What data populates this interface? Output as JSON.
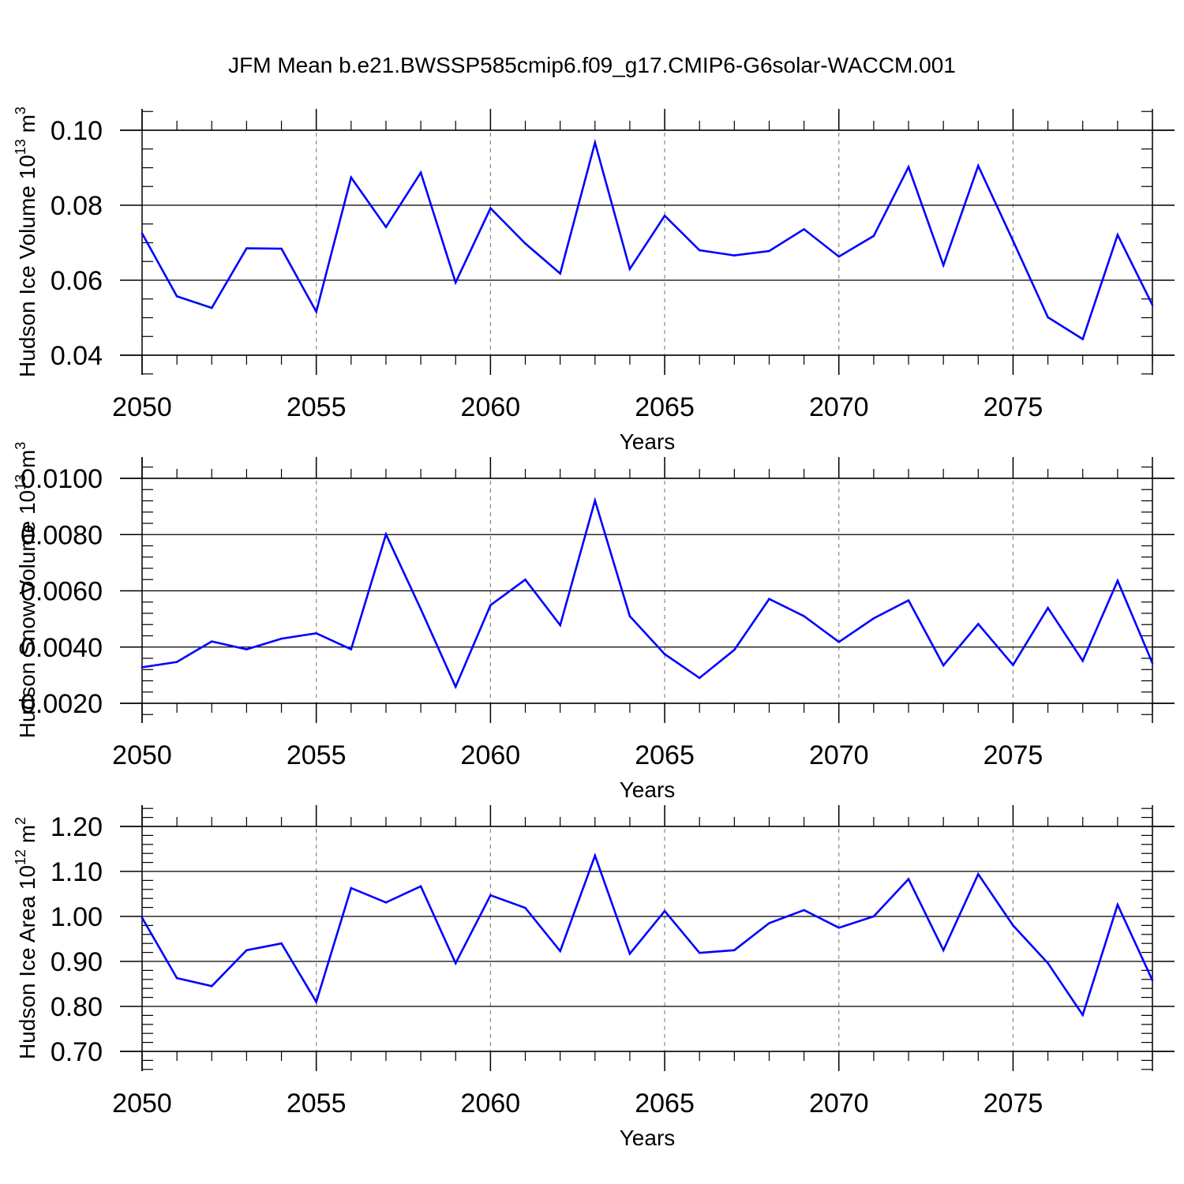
{
  "title": "JFM Mean b.e21.BWSSP585cmip6.f09_g17.CMIP6-G6solar-WACCM.001",
  "colors": {
    "line": "#0000ff",
    "axis": "#000000",
    "grid": "#888888"
  },
  "chart_data": [
    {
      "type": "line",
      "title": "JFM Mean b.e21.BWSSP585cmip6.f09_g17.CMIP6-G6solar-WACCM.001",
      "xlabel": "Years",
      "ylabel": "Hudson Ice Volume 10",
      "ylabel_sup": "13",
      "ylabel_unit": " m",
      "ylabel_unit_sup": "3",
      "xlim": [
        2050,
        2079
      ],
      "ylim": [
        0.035,
        0.105
      ],
      "xticks": [
        2050,
        2055,
        2060,
        2065,
        2070,
        2075
      ],
      "xtick_labels": [
        "2050",
        "2055",
        "2060",
        "2065",
        "2070",
        "2075"
      ],
      "yticks": [
        0.04,
        0.06,
        0.08,
        0.1
      ],
      "ytick_labels": [
        "0.04",
        "0.06",
        "0.08",
        "0.10"
      ],
      "yminor_step": 0.005,
      "x": [
        2050,
        2051,
        2052,
        2053,
        2054,
        2055,
        2056,
        2057,
        2058,
        2059,
        2060,
        2061,
        2062,
        2063,
        2064,
        2065,
        2066,
        2067,
        2068,
        2069,
        2070,
        2071,
        2072,
        2073,
        2074,
        2075,
        2076,
        2077,
        2078,
        2079
      ],
      "series": [
        {
          "name": "Hudson Ice Volume",
          "values": [
            0.0725,
            0.0557,
            0.0526,
            0.0685,
            0.0684,
            0.0516,
            0.0874,
            0.0742,
            0.0887,
            0.0594,
            0.0792,
            0.0698,
            0.0618,
            0.0967,
            0.063,
            0.0772,
            0.068,
            0.0666,
            0.0678,
            0.0736,
            0.0663,
            0.0718,
            0.0902,
            0.064,
            0.0905,
            0.0705,
            0.0501,
            0.0443,
            0.0721,
            0.0534
          ]
        }
      ]
    },
    {
      "type": "line",
      "xlabel": "Years",
      "ylabel": "Hudson Snow Volume 10",
      "ylabel_sup": "13",
      "ylabel_unit": " m",
      "ylabel_unit_sup": "3",
      "xlim": [
        2050,
        2079
      ],
      "ylim": [
        0.0012,
        0.0108
      ],
      "xticks": [
        2050,
        2055,
        2060,
        2065,
        2070,
        2075
      ],
      "xtick_labels": [
        "2050",
        "2055",
        "2060",
        "2065",
        "2070",
        "2075"
      ],
      "yticks": [
        0.002,
        0.004,
        0.006,
        0.008,
        0.01
      ],
      "ytick_labels": [
        "0.0020",
        "0.0040",
        "0.0060",
        "0.0080",
        "0.0100"
      ],
      "yminor_step": 0.0004,
      "x": [
        2050,
        2051,
        2052,
        2053,
        2054,
        2055,
        2056,
        2057,
        2058,
        2059,
        2060,
        2061,
        2062,
        2063,
        2064,
        2065,
        2066,
        2067,
        2068,
        2069,
        2070,
        2071,
        2072,
        2073,
        2074,
        2075,
        2076,
        2077,
        2078,
        2079
      ],
      "series": [
        {
          "name": "Hudson Snow Volume",
          "values": [
            0.00328,
            0.00347,
            0.0042,
            0.00392,
            0.0043,
            0.00449,
            0.00392,
            0.00801,
            0.00535,
            0.00259,
            0.00549,
            0.0064,
            0.00478,
            0.00921,
            0.0051,
            0.00375,
            0.0029,
            0.0039,
            0.00571,
            0.0051,
            0.00418,
            0.00502,
            0.00566,
            0.00335,
            0.00482,
            0.00336,
            0.00539,
            0.00351,
            0.00636,
            0.00343
          ]
        }
      ]
    },
    {
      "type": "line",
      "xlabel": "Years",
      "ylabel": "Hudson Ice Area 10",
      "ylabel_sup": "12",
      "ylabel_unit": " m",
      "ylabel_unit_sup": "2",
      "xlim": [
        2050,
        2079
      ],
      "ylim": [
        0.655,
        1.245
      ],
      "xticks": [
        2050,
        2055,
        2060,
        2065,
        2070,
        2075
      ],
      "xtick_labels": [
        "2050",
        "2055",
        "2060",
        "2065",
        "2070",
        "2075"
      ],
      "yticks": [
        0.7,
        0.8,
        0.9,
        1.0,
        1.1,
        1.2
      ],
      "ytick_labels": [
        "0.70",
        "0.80",
        "0.90",
        "1.00",
        "1.10",
        "1.20"
      ],
      "yminor_step": 0.02,
      "x": [
        2050,
        2051,
        2052,
        2053,
        2054,
        2055,
        2056,
        2057,
        2058,
        2059,
        2060,
        2061,
        2062,
        2063,
        2064,
        2065,
        2066,
        2067,
        2068,
        2069,
        2070,
        2071,
        2072,
        2073,
        2074,
        2075,
        2076,
        2077,
        2078,
        2079
      ],
      "series": [
        {
          "name": "Hudson Ice Area",
          "values": [
            0.997,
            0.863,
            0.845,
            0.925,
            0.94,
            0.81,
            1.063,
            1.031,
            1.067,
            0.896,
            1.047,
            1.019,
            0.923,
            1.135,
            0.917,
            1.012,
            0.919,
            0.925,
            0.985,
            1.014,
            0.975,
            1.0,
            1.083,
            0.925,
            1.094,
            0.98,
            0.896,
            0.781,
            1.026,
            0.858
          ]
        }
      ]
    }
  ]
}
